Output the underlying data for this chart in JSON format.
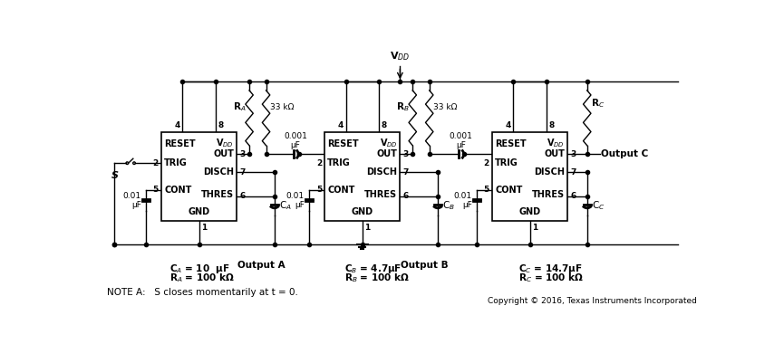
{
  "bg_color": "#ffffff",
  "note": "NOTE A:   S closes momentarily at t = 0.",
  "copyright": "Copyright © 2016, Texas Instruments Incorporated",
  "ic_internal": {
    "reset": "RESET",
    "vdd": "V$_{DD}$",
    "trig": "TRIG",
    "out": "OUT",
    "disch": "DISCH",
    "cont": "CONT",
    "thres": "THRES",
    "gnd": "GND"
  },
  "vdd_label": "V$_{DD}$",
  "ra_label": "R$_A$",
  "rb_label": "R$_B$",
  "rc_label": "R$_C$",
  "res33_label": "33 kΩ",
  "cap001_label": "0.001\nμF",
  "cap001_label2": "0.001",
  "cap001_unit": "μF",
  "cap0001_label": "0.01\nμF",
  "ca_label": "C$_A$",
  "cb_label": "C$_B$",
  "cc_label": "C$_C$",
  "ann_ca": "C$_A$ = 10  μF",
  "ann_ra": "R$_A$ = 100 kΩ",
  "ann_cb": "C$_B$ = 4.7μF",
  "ann_rb": "R$_B$ = 100 kΩ",
  "ann_cc": "C$_C$ = 14.7μF",
  "ann_rc": "R$_C$ = 100 kΩ",
  "out_a": "Output A",
  "out_b": "Output B",
  "out_c": "Output C",
  "s_label": "S"
}
